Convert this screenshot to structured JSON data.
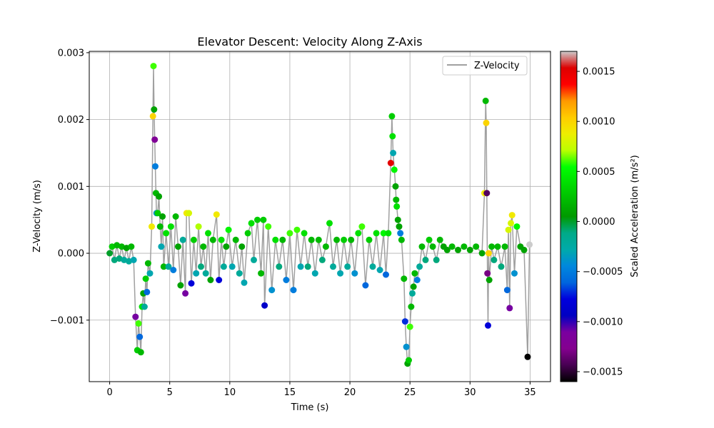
{
  "chart_data": {
    "type": "scatter",
    "title": "Elevator Descent: Velocity Along Z-Axis",
    "xlabel": "Time (s)",
    "ylabel": "Z-Velocity (m/s)",
    "xlim": [
      -1.7,
      36.7
    ],
    "ylim": [
      -0.00192,
      0.00302
    ],
    "xticks": [
      0,
      5,
      10,
      15,
      20,
      25,
      30,
      35
    ],
    "xtick_labels": [
      "0",
      "5",
      "10",
      "15",
      "20",
      "25",
      "30",
      "35"
    ],
    "yticks": [
      -0.001,
      0.0,
      0.001,
      0.002,
      0.003
    ],
    "ytick_labels": [
      "−0.001",
      "0.000",
      "0.001",
      "0.002",
      "0.003"
    ],
    "grid": true,
    "legend": {
      "position": "top-right",
      "entries": [
        "Z-Velocity"
      ]
    },
    "line_color": "#a0a0a0",
    "colorbar": {
      "label": "Scaled Acceleration (m/s²)",
      "range": [
        -0.0016,
        0.0017
      ],
      "ticks": [
        -0.0015,
        -0.001,
        -0.0005,
        0.0,
        0.0005,
        0.001,
        0.0015
      ],
      "tick_labels": [
        "−0.0015",
        "−0.0010",
        "−0.0005",
        "0.0000",
        "0.0005",
        "0.0010",
        "0.0015"
      ],
      "colormap": "nipy_spectral"
    },
    "series": [
      {
        "name": "Z-Velocity",
        "points": [
          [
            0.0,
            0.0,
            0.0
          ],
          [
            0.2,
            0.0001,
            0.0003
          ],
          [
            0.4,
            -0.0001,
            -0.0001
          ],
          [
            0.6,
            0.00012,
            0.0002
          ],
          [
            0.8,
            -8e-05,
            -0.0001
          ],
          [
            1.0,
            0.0001,
            0.0002
          ],
          [
            1.2,
            -0.0001,
            -0.0002
          ],
          [
            1.4,
            8e-05,
            0.0001
          ],
          [
            1.6,
            -0.00012,
            -0.0002
          ],
          [
            1.8,
            0.0001,
            0.0002
          ],
          [
            2.0,
            -0.0001,
            -0.0003
          ],
          [
            2.15,
            -0.00095,
            -0.0011
          ],
          [
            2.3,
            -0.00145,
            0.0003
          ],
          [
            2.4,
            -0.00105,
            0.0006
          ],
          [
            2.5,
            -0.00125,
            -0.0006
          ],
          [
            2.6,
            -0.00148,
            0.0002
          ],
          [
            2.7,
            -0.0008,
            0.0004
          ],
          [
            2.8,
            -0.0006,
            0.0001
          ],
          [
            2.9,
            -0.0008,
            -0.0002
          ],
          [
            3.0,
            -0.00038,
            0.0003
          ],
          [
            3.1,
            -0.00058,
            -0.0006
          ],
          [
            3.2,
            -0.00015,
            0.0002
          ],
          [
            3.35,
            -0.0003,
            -0.0003
          ],
          [
            3.5,
            0.0004,
            0.0009
          ],
          [
            3.6,
            0.00205,
            0.001
          ],
          [
            3.65,
            0.0028,
            0.0006
          ],
          [
            3.7,
            0.00215,
            0.0001
          ],
          [
            3.75,
            0.0017,
            -0.0012
          ],
          [
            3.8,
            0.0013,
            -0.0005
          ],
          [
            3.85,
            0.0009,
            0.0002
          ],
          [
            3.9,
            0.0006,
            -0.0004
          ],
          [
            4.0,
            0.0006,
            0.0003
          ],
          [
            4.1,
            0.00085,
            0.0001
          ],
          [
            4.2,
            0.0004,
            0.0002
          ],
          [
            4.3,
            0.0001,
            -0.0003
          ],
          [
            4.4,
            0.00055,
            0.0001
          ],
          [
            4.5,
            -0.0002,
            0.0002
          ],
          [
            4.7,
            0.0003,
            0.0004
          ],
          [
            4.9,
            -0.0002,
            -0.0002
          ],
          [
            5.1,
            0.0004,
            0.0004
          ],
          [
            5.3,
            -0.00025,
            -0.0005
          ],
          [
            5.5,
            0.00055,
            0.0002
          ],
          [
            5.7,
            0.0001,
            0.0001
          ],
          [
            5.9,
            -0.00048,
            0.0001
          ],
          [
            6.1,
            0.0002,
            -0.0002
          ],
          [
            6.3,
            -0.0006,
            -0.0011
          ],
          [
            6.4,
            0.0006,
            0.0009
          ],
          [
            6.6,
            0.0006,
            0.0008
          ],
          [
            6.8,
            -0.00045,
            -0.0008
          ],
          [
            7.0,
            0.0002,
            0.0003
          ],
          [
            7.2,
            -0.0003,
            -0.0003
          ],
          [
            7.4,
            0.0004,
            0.0007
          ],
          [
            7.6,
            -0.0002,
            -0.0001
          ],
          [
            7.8,
            0.0001,
            0.0002
          ],
          [
            8.0,
            -0.0003,
            -0.0002
          ],
          [
            8.2,
            0.0003,
            0.0004
          ],
          [
            8.4,
            -0.0004,
            0.0001
          ],
          [
            8.6,
            0.0002,
            0.0002
          ],
          [
            8.9,
            0.00058,
            0.0009
          ],
          [
            9.1,
            -0.0004,
            -0.0008
          ],
          [
            9.3,
            0.0002,
            0.0004
          ],
          [
            9.5,
            -0.0002,
            -0.0002
          ],
          [
            9.7,
            0.0001,
            0.0001
          ],
          [
            9.9,
            0.00035,
            0.0005
          ],
          [
            10.2,
            -0.0002,
            -0.0003
          ],
          [
            10.5,
            0.0002,
            0.0002
          ],
          [
            10.8,
            -0.0003,
            -0.0002
          ],
          [
            11.0,
            0.0001,
            0.0001
          ],
          [
            11.2,
            -0.00044,
            -0.0003
          ],
          [
            11.5,
            0.0003,
            0.0003
          ],
          [
            11.8,
            0.00045,
            0.0004
          ],
          [
            12.0,
            -0.0001,
            -0.0002
          ],
          [
            12.3,
            0.0005,
            0.0003
          ],
          [
            12.6,
            -0.0003,
            0.0002
          ],
          [
            12.8,
            0.0005,
            0.0003
          ],
          [
            12.9,
            -0.00078,
            -0.0009
          ],
          [
            13.2,
            0.0004,
            0.0006
          ],
          [
            13.5,
            -0.00055,
            -0.0004
          ],
          [
            13.8,
            0.0002,
            0.0004
          ],
          [
            14.1,
            -0.0002,
            -0.0001
          ],
          [
            14.4,
            0.0002,
            0.0002
          ],
          [
            14.7,
            -0.0004,
            -0.0005
          ],
          [
            15.0,
            0.0003,
            0.0006
          ],
          [
            15.3,
            -0.00055,
            -0.0005
          ],
          [
            15.6,
            0.00035,
            0.0006
          ],
          [
            15.9,
            -0.0002,
            -0.0003
          ],
          [
            16.2,
            0.0003,
            0.0004
          ],
          [
            16.5,
            -0.0002,
            -0.0001
          ],
          [
            16.8,
            0.0002,
            0.0002
          ],
          [
            17.1,
            -0.0003,
            -0.0003
          ],
          [
            17.4,
            0.0002,
            0.0002
          ],
          [
            17.7,
            -0.0001,
            -0.0001
          ],
          [
            18.0,
            0.0001,
            0.0002
          ],
          [
            18.3,
            0.00045,
            0.0004
          ],
          [
            18.6,
            -0.0002,
            -0.0002
          ],
          [
            18.9,
            0.0002,
            0.0002
          ],
          [
            19.2,
            -0.0003,
            -0.0003
          ],
          [
            19.5,
            0.0002,
            0.0003
          ],
          [
            19.8,
            -0.0002,
            -0.0002
          ],
          [
            20.1,
            0.0002,
            0.0002
          ],
          [
            20.4,
            -0.0003,
            -0.0004
          ],
          [
            20.7,
            0.0003,
            0.0004
          ],
          [
            21.0,
            0.0004,
            0.0006
          ],
          [
            21.3,
            -0.00048,
            -0.0006
          ],
          [
            21.6,
            0.0002,
            0.0003
          ],
          [
            21.9,
            -0.0002,
            -0.0002
          ],
          [
            22.2,
            0.0003,
            0.0004
          ],
          [
            22.5,
            -0.00025,
            -0.0003
          ],
          [
            22.8,
            0.0003,
            0.0005
          ],
          [
            23.0,
            -0.00032,
            -0.0006
          ],
          [
            23.2,
            0.0003,
            0.0004
          ],
          [
            23.4,
            0.00135,
            0.0015
          ],
          [
            23.5,
            0.00205,
            0.0003
          ],
          [
            23.55,
            0.00175,
            0.0004
          ],
          [
            23.6,
            0.0015,
            -0.0003
          ],
          [
            23.7,
            0.00125,
            0.0005
          ],
          [
            23.8,
            0.001,
            0.0001
          ],
          [
            23.85,
            0.0008,
            0.0002
          ],
          [
            23.9,
            0.0007,
            0.0004
          ],
          [
            24.0,
            0.0005,
            0.0001
          ],
          [
            24.1,
            0.0004,
            0.0001
          ],
          [
            24.2,
            0.0003,
            -0.0005
          ],
          [
            24.3,
            0.0002,
            0.0002
          ],
          [
            24.5,
            -0.00038,
            0.0002
          ],
          [
            24.6,
            -0.00102,
            -0.0007
          ],
          [
            24.7,
            -0.0014,
            -0.0004
          ],
          [
            24.8,
            -0.00165,
            0.0001
          ],
          [
            24.9,
            -0.0016,
            0.0003
          ],
          [
            25.0,
            -0.0011,
            0.0006
          ],
          [
            25.1,
            -0.0008,
            0.0002
          ],
          [
            25.2,
            -0.0006,
            -0.0002
          ],
          [
            25.3,
            -0.0005,
            0.0001
          ],
          [
            25.4,
            -0.0003,
            0.0002
          ],
          [
            25.6,
            -0.0004,
            -0.0005
          ],
          [
            25.8,
            -0.0002,
            -0.0002
          ],
          [
            26.0,
            0.0001,
            0.0002
          ],
          [
            26.3,
            -0.0001,
            -0.0001
          ],
          [
            26.6,
            0.0002,
            0.0003
          ],
          [
            26.9,
            0.0001,
            0.0002
          ],
          [
            27.2,
            -0.0001,
            -0.0001
          ],
          [
            27.5,
            0.0002,
            0.0002
          ],
          [
            27.8,
            0.0001,
            0.0001
          ],
          [
            28.1,
            5e-05,
            0.0001
          ],
          [
            28.5,
            0.0001,
            0.0002
          ],
          [
            29.0,
            5e-05,
            0.0001
          ],
          [
            29.5,
            0.0001,
            0.0002
          ],
          [
            30.0,
            5e-05,
            0.0001
          ],
          [
            30.5,
            0.0001,
            0.0002
          ],
          [
            31.0,
            0.0,
            0.0001
          ],
          [
            31.2,
            0.0009,
            0.0009
          ],
          [
            31.3,
            0.00228,
            0.0002
          ],
          [
            31.35,
            0.00195,
            0.001
          ],
          [
            31.4,
            0.0009,
            -0.0014
          ],
          [
            31.45,
            -0.0003,
            -0.0013
          ],
          [
            31.5,
            -0.00108,
            -0.0008
          ],
          [
            31.55,
            0.0,
            0.001
          ],
          [
            31.6,
            -0.0004,
            0.0001
          ],
          [
            31.8,
            0.0001,
            0.0002
          ],
          [
            32.0,
            -0.0001,
            -0.0001
          ],
          [
            32.3,
            0.0001,
            0.0002
          ],
          [
            32.6,
            -0.0002,
            -0.0001
          ],
          [
            32.9,
            0.0001,
            0.0002
          ],
          [
            33.1,
            -0.00055,
            -0.0006
          ],
          [
            33.2,
            0.00035,
            0.0008
          ],
          [
            33.3,
            -0.00082,
            -0.0011
          ],
          [
            33.4,
            0.00045,
            0.0008
          ],
          [
            33.5,
            0.00057,
            0.0009
          ],
          [
            33.7,
            -0.0003,
            -0.0004
          ],
          [
            33.9,
            0.0004,
            0.0005
          ],
          [
            34.2,
            0.0001,
            0.0001
          ],
          [
            34.5,
            5e-05,
            0.0001
          ],
          [
            34.8,
            -0.00155,
            -0.0016
          ],
          [
            34.95,
            0.00013,
            0.0017
          ]
        ]
      }
    ]
  }
}
